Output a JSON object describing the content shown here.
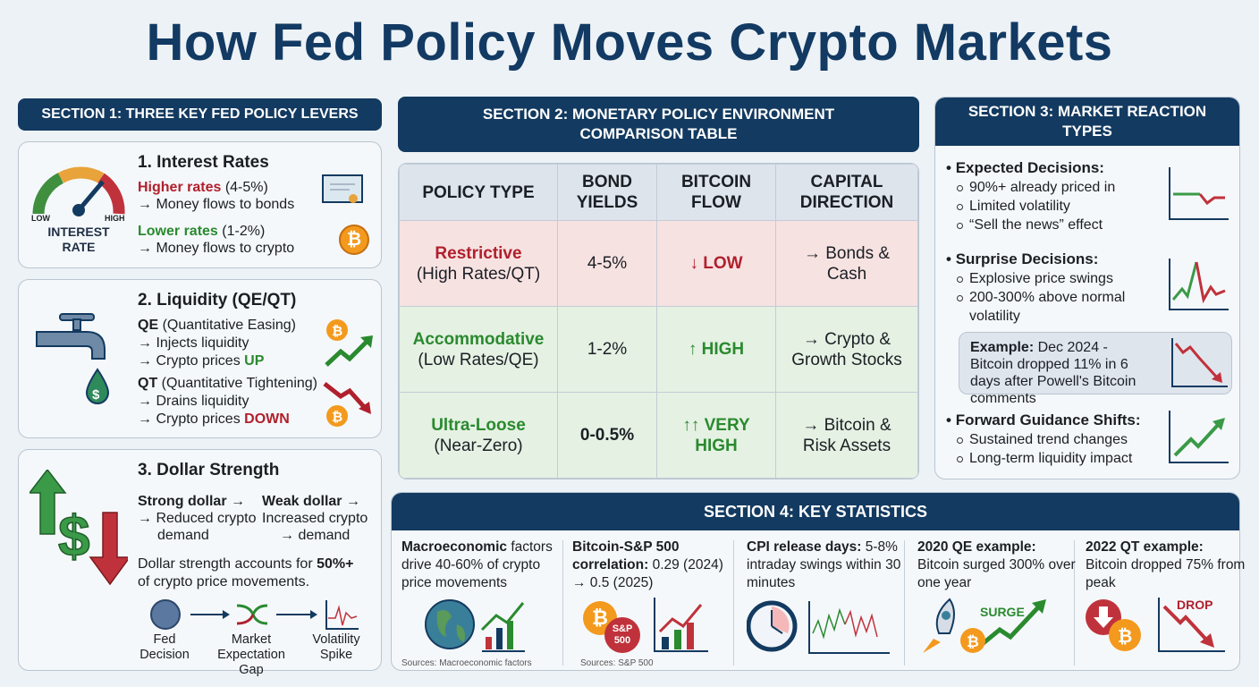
{
  "title": "How Fed Policy Moves Crypto Markets",
  "section1": {
    "header": "SECTION 1: THREE KEY FED POLICY LEVERS",
    "interest": {
      "title": "1. Interest Rates",
      "gauge_low": "LOW",
      "gauge_high": "HIGH",
      "gauge_label": "INTEREST RATE",
      "higher": "Higher rates",
      "higher_range": "(4-5%)",
      "higher_flow": "→ Money flows to bonds",
      "lower": "Lower rates",
      "lower_range": "(1-2%)",
      "lower_flow": "→ Money flows to crypto"
    },
    "liquidity": {
      "title": "2. Liquidity (QE/QT)",
      "qe": "QE",
      "qe_full": "(Quantitative Easing)",
      "qe_1": "→ Injects liquidity",
      "qe_2": "→ Crypto prices",
      "qe_up": "UP",
      "qt": "QT",
      "qt_full": "(Quantitative Tightening)",
      "qt_1": "→ Drains liquidity",
      "qt_2": "→ Crypto prices",
      "qt_down": "DOWN"
    },
    "dollar": {
      "title": "3. Dollar Strength",
      "strong": "Strong dollar →",
      "strong_1": "→ Reduced crypto",
      "strong_2": "demand",
      "weak": "Weak dollar →",
      "weak_1": "Increased crypto",
      "weak_2": "→ demand",
      "note": "Dollar strength accounts for",
      "note_bold": "50%+",
      "note_2": "of crypto price movements.",
      "flow": [
        "Fed Decision",
        "Market Expectation Gap",
        "Volatility Spike"
      ]
    }
  },
  "section2": {
    "header": "SECTION 2: MONETARY POLICY ENVIRONMENT COMPARISON TABLE",
    "columns": [
      "POLICY TYPE",
      "BOND YIELDS",
      "BITCOIN FLOW",
      "CAPITAL DIRECTION"
    ],
    "rows": [
      {
        "type": "Restrictive",
        "sub": "(High Rates/QT)",
        "yields": "4-5%",
        "flow": "↓ LOW",
        "direction": "→ Bonds & Cash"
      },
      {
        "type": "Accommodative",
        "sub": "(Low Rates/QE)",
        "yields": "1-2%",
        "flow": "↑ HIGH",
        "direction": "→ Crypto & Growth Stocks"
      },
      {
        "type": "Ultra-Loose",
        "sub": "(Near-Zero)",
        "yields": "0-0.5%",
        "flow": "↑↑ VERY HIGH",
        "direction": "→ Bitcoin & Risk Assets"
      }
    ]
  },
  "section3": {
    "header": "SECTION 3: MARKET REACTION TYPES",
    "expected": {
      "title": "Expected Decisions:",
      "items": [
        "90%+ already priced in",
        "Limited volatility",
        "“Sell the news” effect"
      ]
    },
    "surprise": {
      "title": "Surprise Decisions:",
      "items": [
        "Explosive price swings",
        "200-300% above normal volatility"
      ]
    },
    "example": {
      "label": "Example:",
      "text": "Dec 2024 - Bitcoin dropped 11% in 6 days after Powell's Bitcoin comments"
    },
    "forward": {
      "title": "Forward Guidance Shifts:",
      "items": [
        "Sustained trend changes",
        "Long-term liquidity impact"
      ]
    }
  },
  "section4": {
    "header": "SECTION 4: KEY STATISTICS",
    "stats": [
      {
        "bold": "Macroeconomic",
        "text": "factors drive 40-60% of crypto price movements",
        "source": "Sources: Macroeconomic factors"
      },
      {
        "bold": "Bitcoin-S&P 500 correlation:",
        "text": "0.29 (2024) → 0.5 (2025)",
        "source": "Sources: S&P 500",
        "badge": "S&P 500"
      },
      {
        "bold": "CPI release days:",
        "text": "5-8% intraday swings within 30 minutes"
      },
      {
        "bold": "2020 QE example:",
        "text": "Bitcoin surged 300% over one year",
        "tag": "SURGE"
      },
      {
        "bold": "2022 QT example:",
        "text": "Bitcoin dropped 75% from peak",
        "tag": "DROP"
      }
    ]
  },
  "colors": {
    "navy": "#133a60",
    "red": "#b0202c",
    "green": "#2a8a2f",
    "bitcoin": "#f39a1e"
  }
}
